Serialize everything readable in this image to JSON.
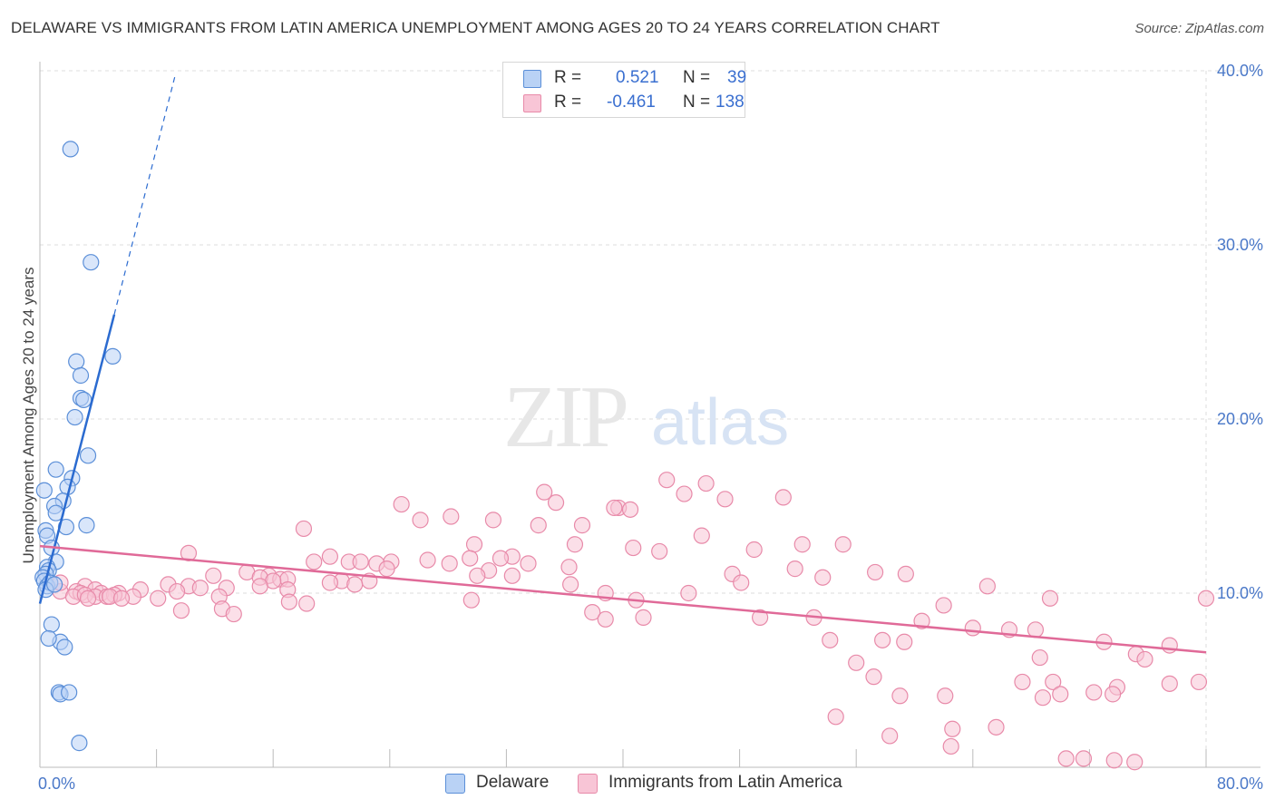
{
  "title": "DELAWARE VS IMMIGRANTS FROM LATIN AMERICA UNEMPLOYMENT AMONG AGES 20 TO 24 YEARS CORRELATION CHART",
  "source": "Source: ZipAtlas.com",
  "watermark": {
    "zip": "ZIP",
    "atlas": "atlas"
  },
  "legend": {
    "rows": [
      {
        "r_label": "R =",
        "r_value": "0.521",
        "n_label": "N =",
        "n_value": "39"
      },
      {
        "r_label": "R =",
        "r_value": "-0.461",
        "n_label": "N =",
        "n_value": "138"
      }
    ],
    "bottom": [
      "Delaware",
      "Immigrants from Latin America"
    ]
  },
  "colors": {
    "blue_fill": "#b9d2f5",
    "blue_stroke": "#5b8fd8",
    "blue_line": "#2b6bd0",
    "pink_fill": "#f8c5d6",
    "pink_stroke": "#e88aa9",
    "pink_line": "#e06a98",
    "grid": "#dddddd",
    "tick_text": "#4a78c8"
  },
  "chart_data": {
    "type": "scatter",
    "title": "DELAWARE VS IMMIGRANTS FROM LATIN AMERICA UNEMPLOYMENT AMONG AGES 20 TO 24 YEARS CORRELATION CHART",
    "xlabel": "",
    "ylabel": "Unemployment Among Ages 20 to 24 years",
    "xlim": [
      0,
      80
    ],
    "ylim": [
      0,
      40
    ],
    "x_tick_labels": [
      {
        "value": 0,
        "label": "0.0%"
      },
      {
        "value": 80,
        "label": "80.0%"
      }
    ],
    "y_tick_labels": [
      {
        "value": 10,
        "label": "10.0%"
      },
      {
        "value": 20,
        "label": "20.0%"
      },
      {
        "value": 30,
        "label": "30.0%"
      },
      {
        "value": 40,
        "label": "40.0%"
      }
    ],
    "series": [
      {
        "name": "Delaware",
        "color": "blue",
        "R": 0.521,
        "N": 39,
        "points": [
          [
            2.1,
            35.5
          ],
          [
            3.5,
            29.0
          ],
          [
            5.0,
            23.6
          ],
          [
            2.5,
            23.3
          ],
          [
            2.8,
            22.5
          ],
          [
            2.8,
            21.2
          ],
          [
            3.0,
            21.1
          ],
          [
            2.4,
            20.1
          ],
          [
            3.3,
            17.9
          ],
          [
            1.1,
            17.1
          ],
          [
            2.2,
            16.6
          ],
          [
            1.9,
            16.1
          ],
          [
            0.3,
            15.9
          ],
          [
            1.6,
            15.3
          ],
          [
            1.0,
            15.0
          ],
          [
            1.1,
            14.6
          ],
          [
            3.2,
            13.9
          ],
          [
            1.8,
            13.8
          ],
          [
            0.4,
            13.6
          ],
          [
            0.5,
            13.3
          ],
          [
            0.8,
            12.6
          ],
          [
            1.1,
            11.8
          ],
          [
            0.5,
            11.5
          ],
          [
            0.6,
            11.3
          ],
          [
            0.4,
            11.1
          ],
          [
            0.2,
            10.9
          ],
          [
            0.3,
            10.7
          ],
          [
            0.5,
            10.4
          ],
          [
            0.7,
            10.6
          ],
          [
            0.4,
            10.2
          ],
          [
            1.0,
            10.5
          ],
          [
            0.8,
            8.2
          ],
          [
            1.4,
            7.2
          ],
          [
            0.6,
            7.4
          ],
          [
            1.7,
            6.9
          ],
          [
            1.3,
            4.3
          ],
          [
            1.4,
            4.2
          ],
          [
            2.0,
            4.3
          ],
          [
            2.7,
            1.4
          ]
        ]
      },
      {
        "name": "Immigrants from Latin America",
        "color": "pink",
        "R": -0.461,
        "N": 138,
        "points": [
          [
            43.0,
            16.5
          ],
          [
            45.7,
            16.3
          ],
          [
            34.6,
            15.8
          ],
          [
            44.2,
            15.7
          ],
          [
            51.0,
            15.5
          ],
          [
            47.0,
            15.4
          ],
          [
            35.4,
            15.2
          ],
          [
            24.8,
            15.1
          ],
          [
            39.7,
            14.9
          ],
          [
            39.4,
            14.9
          ],
          [
            40.5,
            14.8
          ],
          [
            28.2,
            14.4
          ],
          [
            26.1,
            14.2
          ],
          [
            31.1,
            14.2
          ],
          [
            37.2,
            13.9
          ],
          [
            34.2,
            13.9
          ],
          [
            18.1,
            13.7
          ],
          [
            45.4,
            13.3
          ],
          [
            29.8,
            12.8
          ],
          [
            36.7,
            12.8
          ],
          [
            52.3,
            12.8
          ],
          [
            55.1,
            12.8
          ],
          [
            40.7,
            12.6
          ],
          [
            49.0,
            12.5
          ],
          [
            42.5,
            12.4
          ],
          [
            10.2,
            12.3
          ],
          [
            19.9,
            12.1
          ],
          [
            32.4,
            12.1
          ],
          [
            29.5,
            12.0
          ],
          [
            31.6,
            12.0
          ],
          [
            26.6,
            11.9
          ],
          [
            18.8,
            11.8
          ],
          [
            21.2,
            11.8
          ],
          [
            22.0,
            11.8
          ],
          [
            24.1,
            11.8
          ],
          [
            23.1,
            11.7
          ],
          [
            28.1,
            11.7
          ],
          [
            33.5,
            11.7
          ],
          [
            36.3,
            11.5
          ],
          [
            23.8,
            11.4
          ],
          [
            51.8,
            11.4
          ],
          [
            30.8,
            11.3
          ],
          [
            14.2,
            11.2
          ],
          [
            57.3,
            11.2
          ],
          [
            47.5,
            11.1
          ],
          [
            59.4,
            11.1
          ],
          [
            11.9,
            11.0
          ],
          [
            15.7,
            11.0
          ],
          [
            30.0,
            11.0
          ],
          [
            32.4,
            11.0
          ],
          [
            53.7,
            10.9
          ],
          [
            15.1,
            10.9
          ],
          [
            16.5,
            10.8
          ],
          [
            17.0,
            10.8
          ],
          [
            16.0,
            10.7
          ],
          [
            20.7,
            10.7
          ],
          [
            22.6,
            10.7
          ],
          [
            19.9,
            10.6
          ],
          [
            48.1,
            10.6
          ],
          [
            8.8,
            10.5
          ],
          [
            36.4,
            10.5
          ],
          [
            21.6,
            10.5
          ],
          [
            65.0,
            10.4
          ],
          [
            3.1,
            10.4
          ],
          [
            10.2,
            10.4
          ],
          [
            15.1,
            10.4
          ],
          [
            11.0,
            10.3
          ],
          [
            12.8,
            10.3
          ],
          [
            6.9,
            10.2
          ],
          [
            17.0,
            10.2
          ],
          [
            2.5,
            10.1
          ],
          [
            3.8,
            10.2
          ],
          [
            9.4,
            10.1
          ],
          [
            1.4,
            10.1
          ],
          [
            2.8,
            10.0
          ],
          [
            4.2,
            10.0
          ],
          [
            5.4,
            10.0
          ],
          [
            38.8,
            10.0
          ],
          [
            44.5,
            10.0
          ],
          [
            5.1,
            9.9
          ],
          [
            12.3,
            9.8
          ],
          [
            2.3,
            9.8
          ],
          [
            1.4,
            10.6
          ],
          [
            3.1,
            9.9
          ],
          [
            6.4,
            9.8
          ],
          [
            3.8,
            9.8
          ],
          [
            4.6,
            9.8
          ],
          [
            4.8,
            9.8
          ],
          [
            8.1,
            9.7
          ],
          [
            5.6,
            9.7
          ],
          [
            3.3,
            9.7
          ],
          [
            29.6,
            9.6
          ],
          [
            40.9,
            9.6
          ],
          [
            69.3,
            9.7
          ],
          [
            80.0,
            9.7
          ],
          [
            17.1,
            9.5
          ],
          [
            18.3,
            9.4
          ],
          [
            12.5,
            9.1
          ],
          [
            9.7,
            9.0
          ],
          [
            62.0,
            9.3
          ],
          [
            37.9,
            8.9
          ],
          [
            13.3,
            8.8
          ],
          [
            53.1,
            8.6
          ],
          [
            49.4,
            8.6
          ],
          [
            41.4,
            8.6
          ],
          [
            38.8,
            8.5
          ],
          [
            60.5,
            8.4
          ],
          [
            64.0,
            8.0
          ],
          [
            66.5,
            7.9
          ],
          [
            68.3,
            7.9
          ],
          [
            57.8,
            7.3
          ],
          [
            54.2,
            7.3
          ],
          [
            59.3,
            7.2
          ],
          [
            73.0,
            7.2
          ],
          [
            77.5,
            7.0
          ],
          [
            75.2,
            6.5
          ],
          [
            75.8,
            6.2
          ],
          [
            68.6,
            6.3
          ],
          [
            56.0,
            6.0
          ],
          [
            57.2,
            5.2
          ],
          [
            67.4,
            4.9
          ],
          [
            69.5,
            4.9
          ],
          [
            73.9,
            4.6
          ],
          [
            77.5,
            4.8
          ],
          [
            79.5,
            4.9
          ],
          [
            62.1,
            4.1
          ],
          [
            59.0,
            4.1
          ],
          [
            68.8,
            4.0
          ],
          [
            70.0,
            4.2
          ],
          [
            73.6,
            4.2
          ],
          [
            72.3,
            4.3
          ],
          [
            54.6,
            2.9
          ],
          [
            62.6,
            2.2
          ],
          [
            65.6,
            2.3
          ],
          [
            58.3,
            1.8
          ],
          [
            62.5,
            1.2
          ],
          [
            70.4,
            0.5
          ],
          [
            71.6,
            0.5
          ],
          [
            73.7,
            0.4
          ],
          [
            75.1,
            0.3
          ]
        ]
      }
    ],
    "trend_lines": [
      {
        "series": "Delaware",
        "solid": [
          [
            0,
            9.4
          ],
          [
            5.1,
            26.0
          ]
        ],
        "dashed": [
          [
            5.1,
            26.0
          ],
          [
            9.3,
            39.8
          ]
        ]
      },
      {
        "series": "Immigrants from Latin America",
        "solid": [
          [
            0,
            12.7
          ],
          [
            80,
            6.6
          ]
        ]
      }
    ]
  }
}
